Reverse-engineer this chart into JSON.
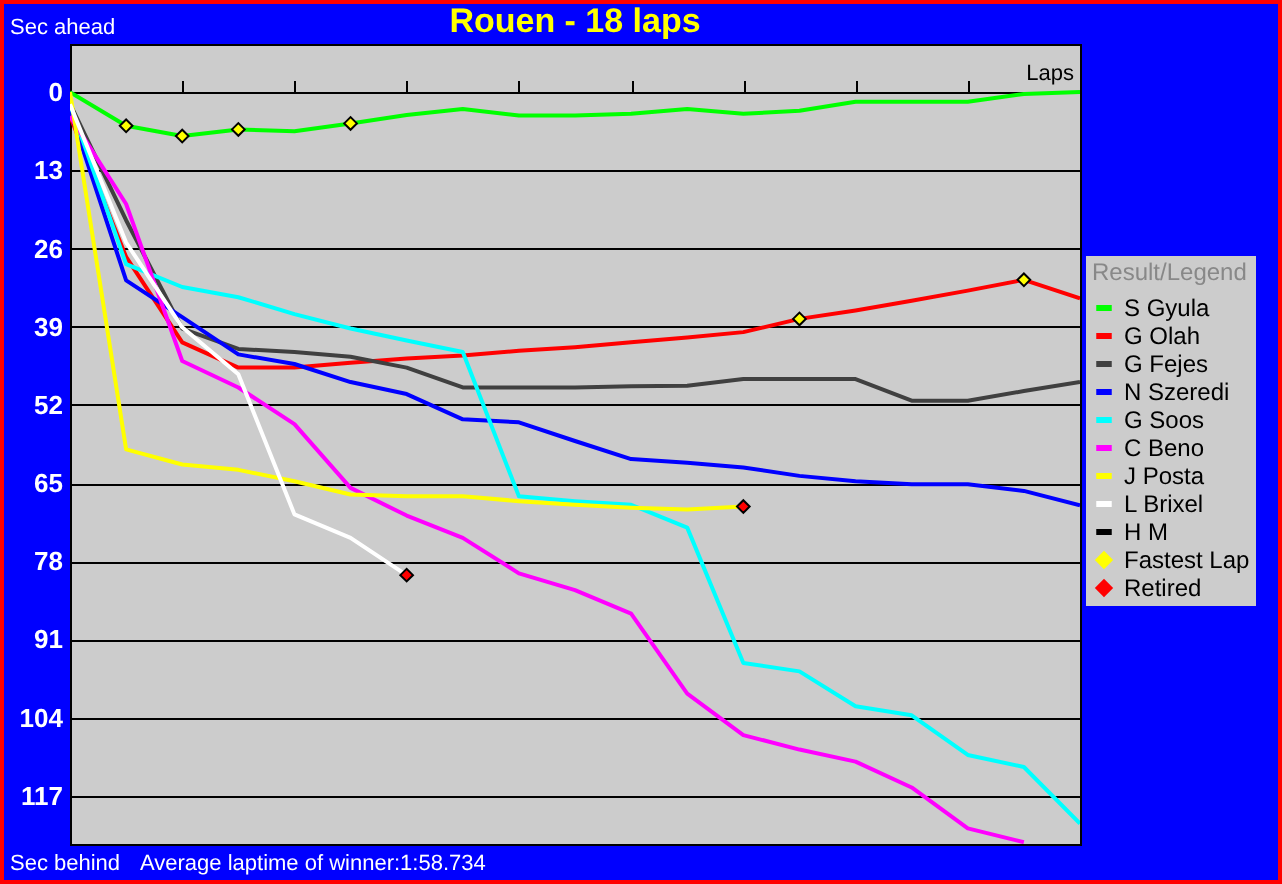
{
  "chart_data": {
    "type": "line",
    "title": "Rouen - 18 laps",
    "xlabel": "Laps",
    "ylabel": "Sec ahead",
    "legend_title": "Result/Legend",
    "annotations": [
      "Sec behind",
      "Average laptime of winner:1:58.734"
    ],
    "categories": [
      null,
      null,
      null,
      null,
      null,
      null,
      null,
      null,
      null,
      null,
      null,
      null,
      null,
      null,
      null,
      null,
      null,
      null,
      null
    ],
    "ylim": [
      125,
      -8
    ],
    "yticks": [
      0,
      13,
      26,
      39,
      52,
      65,
      78,
      91,
      104,
      117
    ],
    "grid": "y",
    "legend": "right",
    "tick_labels": "y",
    "series": [
      {
        "name": "S Gyula",
        "color": "#00ff00",
        "values": [
          0,
          5.6,
          7.3,
          6.2,
          6.5,
          5.2,
          3.8,
          2.8,
          3.9,
          3.9,
          3.6,
          2.8,
          3.6,
          3.1,
          1.6,
          1.6,
          1.6,
          0.3,
          0
        ]
      },
      {
        "name": "G Olah",
        "color": "#ff0000",
        "values": [
          4,
          27.4,
          41.6,
          45.8,
          45.8,
          45,
          44.3,
          43.8,
          43,
          42.4,
          41.6,
          40.8,
          39.9,
          37.7,
          36.3,
          34.7,
          33,
          31.2,
          34.3
        ]
      },
      {
        "name": "G Fejes",
        "color": "#404040",
        "values": [
          1.9,
          21.3,
          39.3,
          42.7,
          43.2,
          44,
          45.8,
          49.1,
          49.1,
          49.1,
          48.9,
          48.8,
          47.7,
          47.7,
          47.7,
          51.3,
          51.3,
          49.7,
          48.2
        ]
      },
      {
        "name": "N Szeredi",
        "color": "#0000ff",
        "values": [
          3,
          31.3,
          37.4,
          43.6,
          45.2,
          48.2,
          50.2,
          54.4,
          54.9,
          58,
          61,
          61.6,
          62.4,
          63.8,
          64.7,
          65.2,
          65.2,
          66.3,
          68.7
        ]
      },
      {
        "name": "G Soos",
        "color": "#00ffff",
        "values": [
          2,
          28.6,
          32.4,
          34.1,
          36.9,
          39.3,
          41.3,
          43.2,
          67.2,
          68,
          68.6,
          72.4,
          94.9,
          96.3,
          102.1,
          103.6,
          110.2,
          112.2,
          121.6
        ]
      },
      {
        "name": "C Beno",
        "color": "#ff00ff",
        "values": [
          4,
          18.6,
          44.7,
          49.1,
          55.2,
          65.8,
          70.4,
          74.1,
          80,
          82.8,
          86.7,
          100,
          106.9,
          109.3,
          111.3,
          115.6,
          122.4,
          124.7,
          null
        ]
      },
      {
        "name": "J Posta",
        "color": "#ffff00",
        "values": [
          0,
          59.4,
          61.9,
          62.8,
          64.7,
          66.9,
          67.2,
          67.2,
          68,
          68.6,
          69.1,
          69.4,
          68.9,
          null,
          null,
          null,
          null,
          null,
          null
        ]
      },
      {
        "name": "L Brixel",
        "color": "#ffffff",
        "values": [
          2,
          25,
          39.1,
          46.9,
          70.2,
          74.1,
          80.3,
          null,
          null,
          null,
          null,
          null,
          null,
          null,
          null,
          null,
          null,
          null,
          null
        ]
      },
      {
        "name": "H M",
        "color": "#000000",
        "values": [
          null,
          null,
          null,
          null,
          null,
          null,
          null,
          null,
          null,
          null,
          null,
          null,
          null,
          null,
          null,
          null,
          null,
          null,
          null
        ]
      },
      {
        "name": "Fastest Lap",
        "type": "scatter",
        "marker": "diamond",
        "color": "#ffff00",
        "values": [
          null,
          5.6,
          7.3,
          6.2,
          null,
          5.2,
          null,
          null,
          null,
          null,
          null,
          null,
          null,
          37.7,
          null,
          null,
          null,
          31.2,
          null
        ]
      },
      {
        "name": "Retired",
        "type": "scatter",
        "marker": "diamond",
        "color": "#ff0000",
        "values": [
          null,
          null,
          null,
          null,
          null,
          null,
          80.3,
          null,
          null,
          null,
          null,
          null,
          68.9,
          null,
          null,
          null,
          null,
          null,
          null
        ]
      }
    ]
  }
}
